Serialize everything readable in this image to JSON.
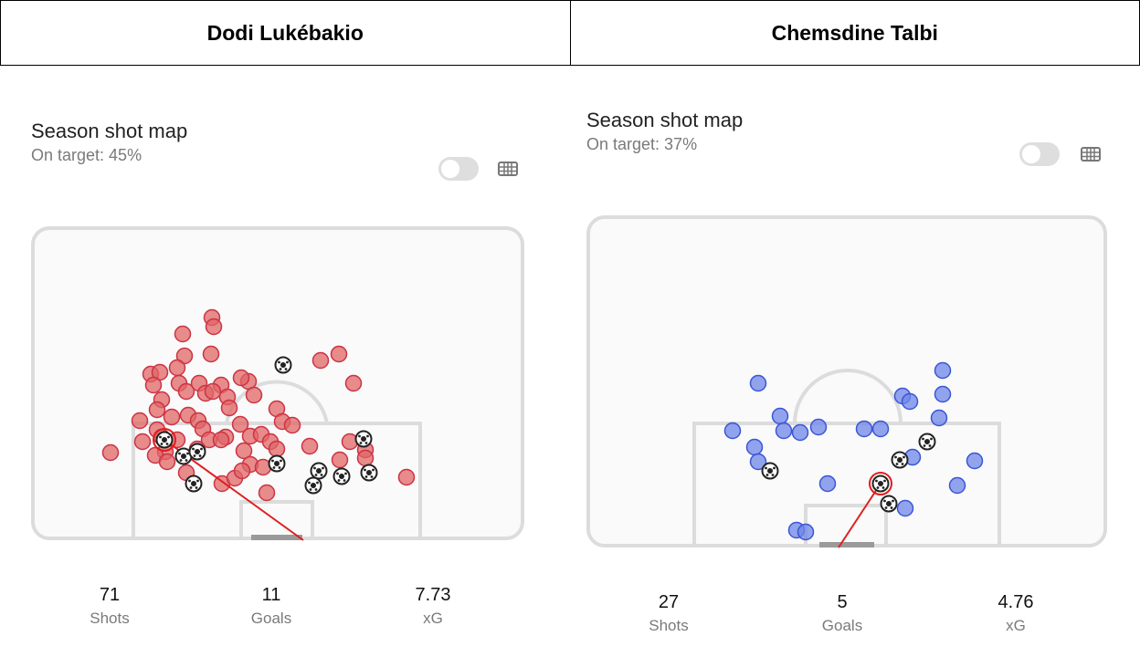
{
  "players": [
    {
      "name": "Dodi Lukébakio",
      "title": "Season shot map",
      "subtitle": "On target: 45%",
      "dot_color": "#e06666",
      "dot_stroke": "#cc3344",
      "stats": [
        {
          "value": "71",
          "label": "Shots"
        },
        {
          "value": "11",
          "label": "Goals"
        },
        {
          "value": "7.73",
          "label": "xG"
        }
      ]
    },
    {
      "name": "Chemsdine Talbi",
      "title": "Season shot map",
      "subtitle": "On target: 37%",
      "dot_color": "#6f86e8",
      "dot_stroke": "#3a56d6",
      "stats": [
        {
          "value": "27",
          "label": "Shots"
        },
        {
          "value": "5",
          "label": "Goals"
        },
        {
          "value": "4.76",
          "label": "xG"
        }
      ]
    }
  ]
}
